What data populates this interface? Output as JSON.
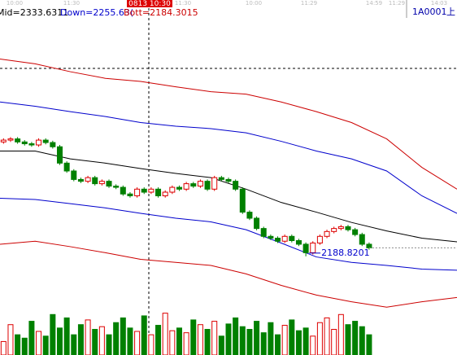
{
  "chart_data": {
    "type": "candlestick",
    "header_labels": [
      {
        "text": "Mid=2333.6311",
        "color": "#000000"
      },
      {
        "text": "Down=2255.63(",
        "color": "#0000cc"
      },
      {
        "text": "Bott=2184.3015",
        "color": "#cc0000"
      }
    ],
    "symbol": "1A0001",
    "symbol_suffix": "上",
    "cursor_time": "0813 10:30",
    "time_labels": [
      "10:00",
      "11:30",
      "11:30",
      "10:00",
      "11:29",
      "14:59",
      "11:29",
      "14:03"
    ],
    "low_label": "2188.8201",
    "xlim": [
      0,
      65
    ],
    "ylim": [
      2100,
      2599
    ],
    "open": [
      2378,
      2381,
      2383,
      2378,
      2375,
      2373,
      2381,
      2377,
      2370,
      2343,
      2330,
      2316,
      2313,
      2319,
      2309,
      2313,
      2305,
      2303,
      2292,
      2289,
      2300,
      2295,
      2300,
      2289,
      2295,
      2303,
      2300,
      2309,
      2305,
      2313,
      2300,
      2319,
      2316,
      2313,
      2300,
      2262,
      2252,
      2235,
      2222,
      2219,
      2214,
      2222,
      2215,
      2209,
      2195,
      2211,
      2222,
      2230,
      2235,
      2238,
      2233,
      2225,
      2209
    ],
    "high": [
      2384,
      2386,
      2386,
      2381,
      2378,
      2384,
      2384,
      2380,
      2373,
      2346,
      2333,
      2319,
      2322,
      2322,
      2316,
      2316,
      2308,
      2306,
      2295,
      2303,
      2303,
      2303,
      2303,
      2298,
      2306,
      2306,
      2312,
      2312,
      2316,
      2316,
      2322,
      2322,
      2319,
      2316,
      2303,
      2265,
      2255,
      2238,
      2225,
      2222,
      2225,
      2225,
      2218,
      2212,
      2214,
      2225,
      2233,
      2238,
      2241,
      2241,
      2236,
      2228,
      2212
    ],
    "low": [
      2375,
      2378,
      2375,
      2372,
      2370,
      2370,
      2374,
      2367,
      2340,
      2327,
      2313,
      2310,
      2310,
      2306,
      2306,
      2302,
      2300,
      2289,
      2286,
      2286,
      2292,
      2292,
      2286,
      2286,
      2292,
      2297,
      2297,
      2302,
      2302,
      2297,
      2297,
      2313,
      2310,
      2297,
      2259,
      2249,
      2232,
      2219,
      2216,
      2211,
      2211,
      2212,
      2206,
      2189,
      2192,
      2208,
      2219,
      2227,
      2232,
      2230,
      2222,
      2206,
      2200
    ],
    "close": [
      2381,
      2383,
      2378,
      2375,
      2373,
      2381,
      2377,
      2370,
      2343,
      2330,
      2316,
      2313,
      2319,
      2309,
      2313,
      2305,
      2303,
      2292,
      2289,
      2300,
      2295,
      2300,
      2289,
      2295,
      2303,
      2300,
      2309,
      2305,
      2313,
      2300,
      2319,
      2316,
      2313,
      2300,
      2262,
      2252,
      2235,
      2222,
      2219,
      2214,
      2222,
      2215,
      2209,
      2195,
      2211,
      2222,
      2230,
      2235,
      2238,
      2233,
      2225,
      2209,
      2203
    ],
    "volume": [
      20,
      45,
      30,
      25,
      50,
      35,
      28,
      60,
      40,
      55,
      30,
      45,
      52,
      38,
      42,
      30,
      48,
      55,
      40,
      35,
      58,
      30,
      44,
      62,
      36,
      40,
      33,
      52,
      45,
      38,
      50,
      28,
      46,
      55,
      42,
      38,
      50,
      33,
      48,
      30,
      44,
      52,
      36,
      40,
      28,
      48,
      55,
      38,
      60,
      45,
      50,
      42,
      30
    ],
    "vlim": [
      0,
      70
    ],
    "up_color": "#dd0000",
    "down_color": "#008000",
    "bands": {
      "x": [
        0,
        5,
        10,
        15,
        20,
        25,
        30,
        35,
        40,
        45,
        50,
        55,
        60,
        65
      ],
      "series": [
        {
          "color": "#cc0000",
          "values": [
            2515,
            2507,
            2494,
            2483,
            2478,
            2469,
            2461,
            2457,
            2444,
            2428,
            2410,
            2383,
            2336,
            2300
          ]
        },
        {
          "color": "#0000cc",
          "values": [
            2444,
            2437,
            2428,
            2420,
            2410,
            2404,
            2400,
            2393,
            2379,
            2363,
            2350,
            2330,
            2289,
            2260
          ]
        },
        {
          "color": "#000000",
          "values": [
            2363,
            2363,
            2350,
            2343,
            2334,
            2326,
            2319,
            2300,
            2278,
            2262,
            2245,
            2231,
            2219,
            2213
          ]
        },
        {
          "color": "#0000cc",
          "values": [
            2285,
            2283,
            2276,
            2269,
            2260,
            2252,
            2246,
            2233,
            2211,
            2188,
            2179,
            2174,
            2168,
            2166
          ]
        },
        {
          "color": "#cc0000",
          "values": [
            2209,
            2214,
            2205,
            2195,
            2184,
            2179,
            2174,
            2160,
            2141,
            2125,
            2114,
            2105,
            2114,
            2121
          ]
        }
      ]
    }
  }
}
